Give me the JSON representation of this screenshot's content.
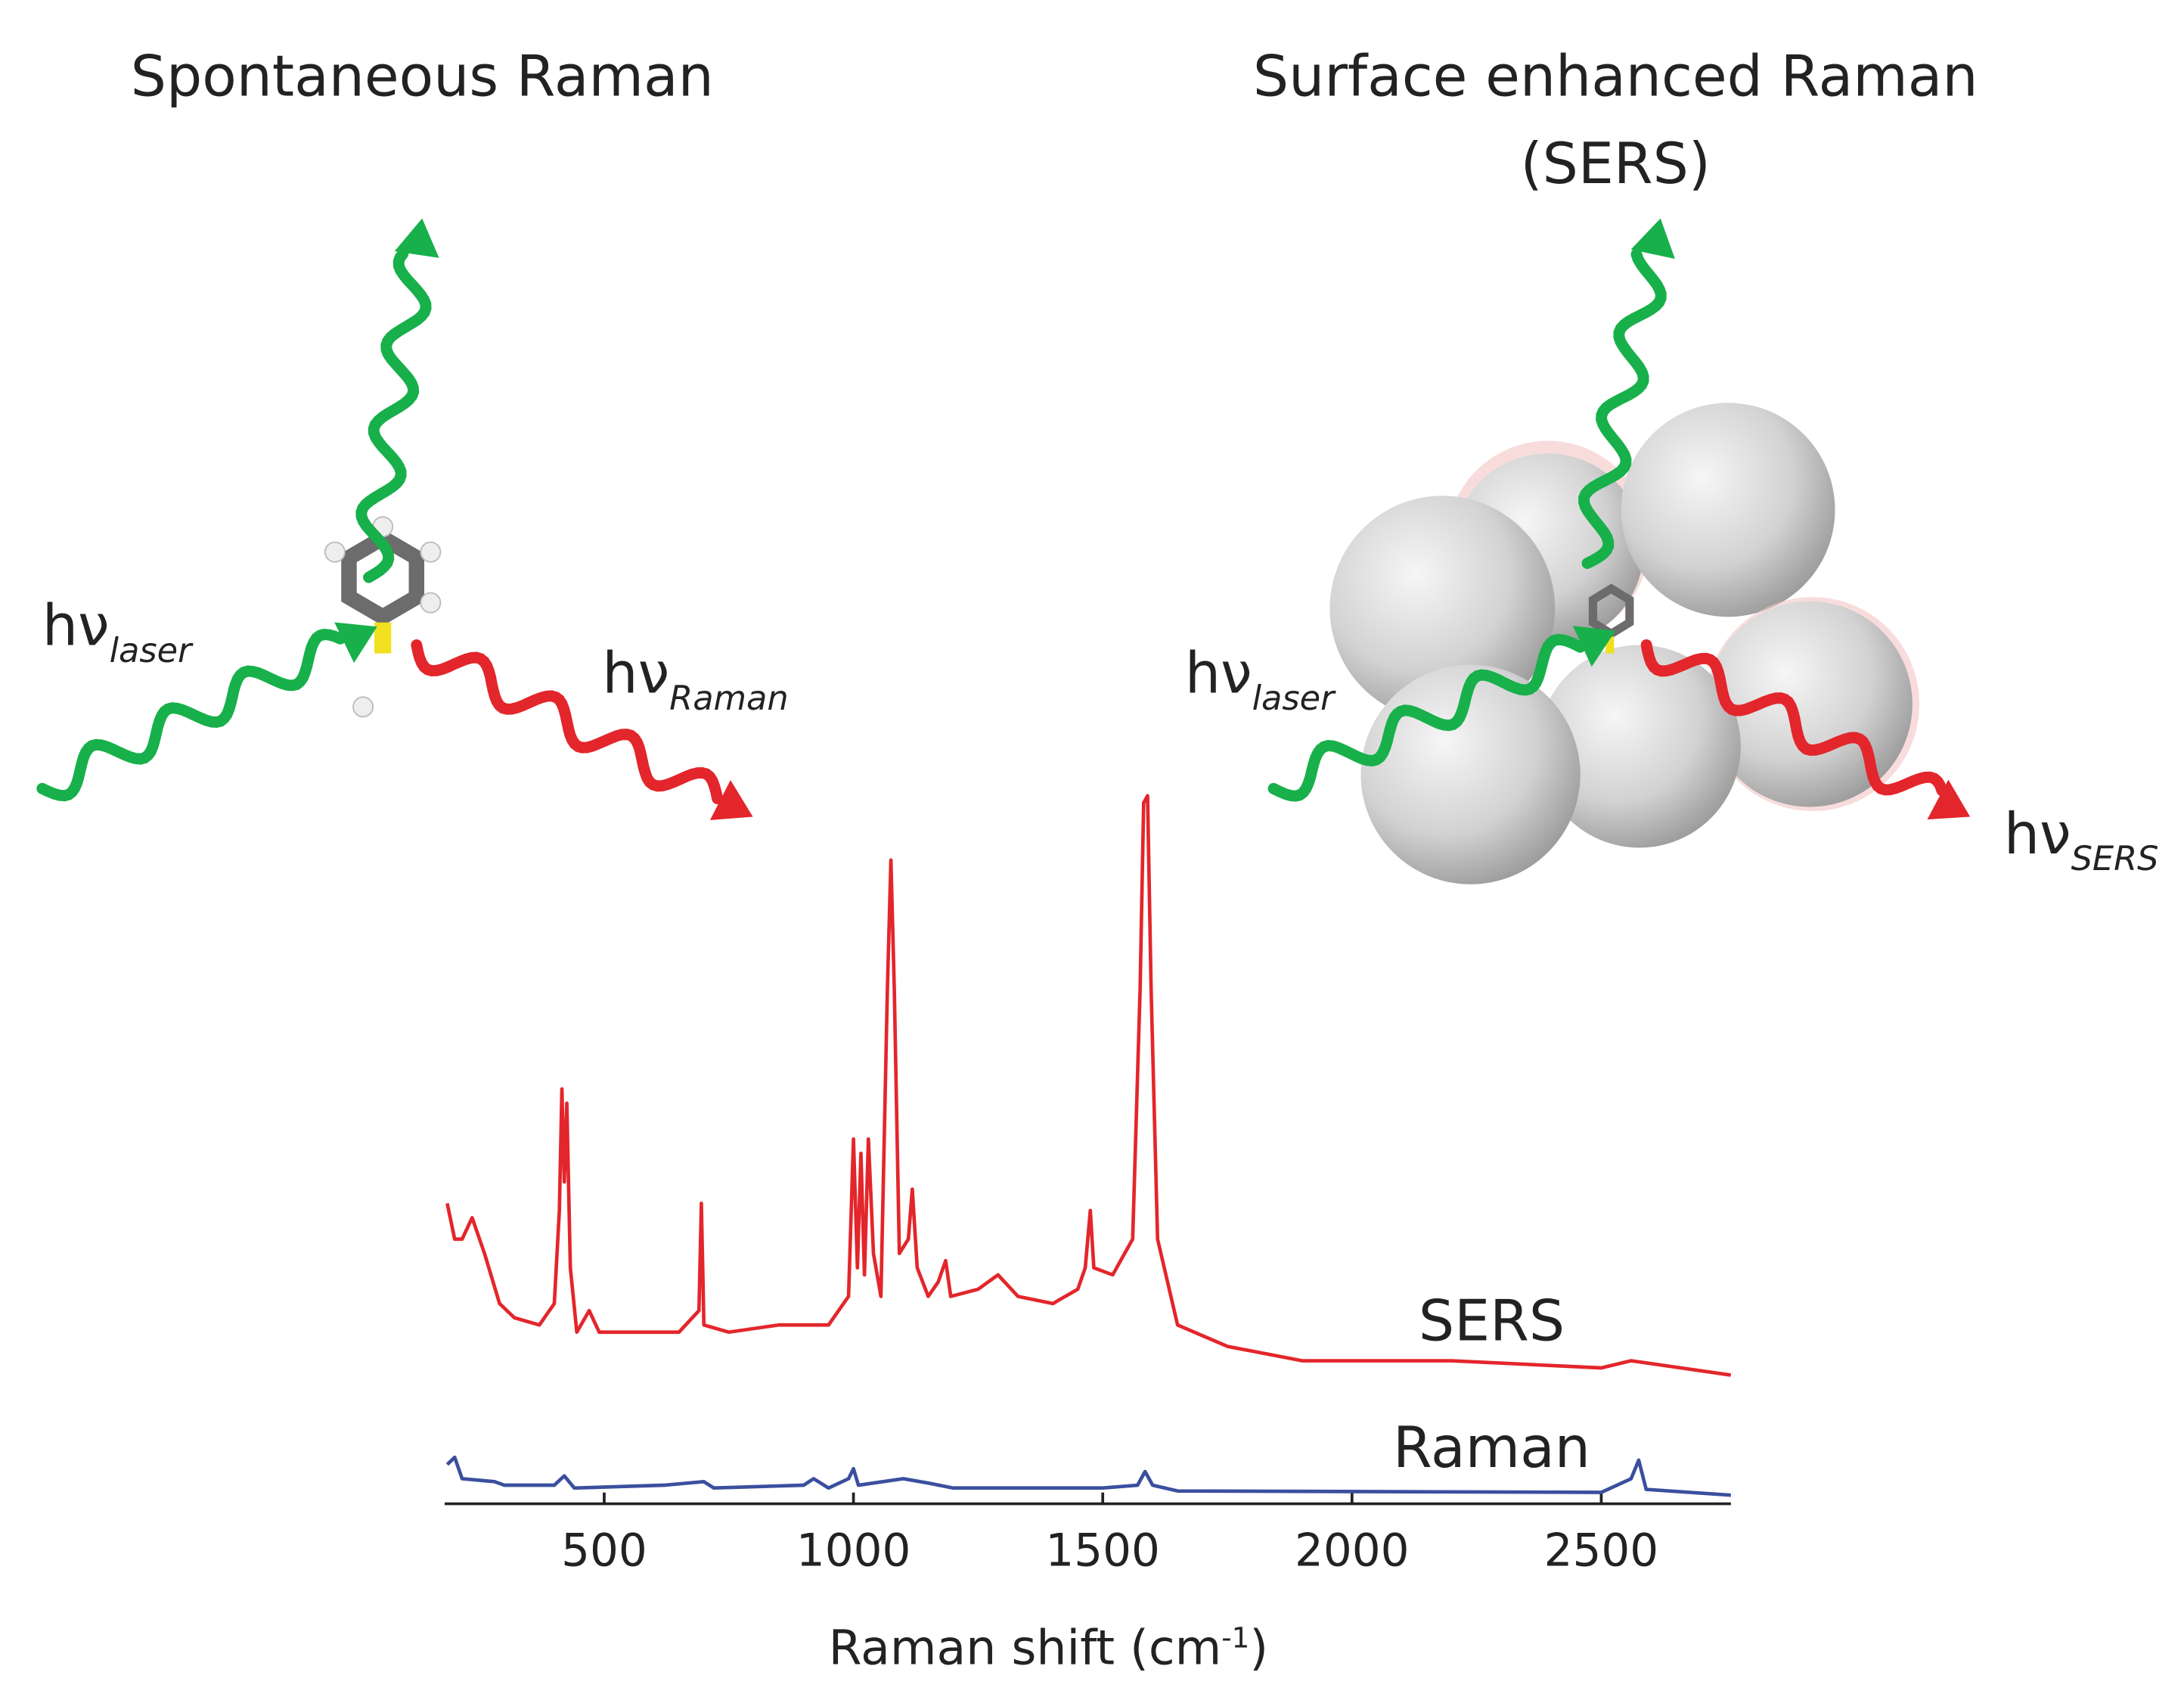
{
  "diagram": {
    "left_title": "Spontaneous Raman",
    "right_title": [
      "Surface enhanced Raman",
      "(SERS)"
    ],
    "left_laser": {
      "main": "hν",
      "sub": "laser"
    },
    "left_raman": {
      "main": "hν",
      "sub": "Raman"
    },
    "right_laser": {
      "main": "hν",
      "sub": "laser"
    },
    "right_sers": {
      "main": "hν",
      "sub": "SERS"
    }
  },
  "chart_data": {
    "type": "line",
    "xlabel": {
      "text": "Raman shift (cm",
      "sup": "-1",
      "end": ")"
    },
    "xlim": [
      180,
      2760
    ],
    "xticks": [
      500,
      1000,
      1500,
      2000,
      2500
    ],
    "ylim": [
      0,
      100
    ],
    "series": [
      {
        "name": "SERS",
        "color": "#e3262b",
        "x": [
          185,
          200,
          215,
          235,
          260,
          290,
          320,
          370,
          400,
          410,
          415,
          420,
          425,
          432,
          445,
          470,
          490,
          550,
          650,
          690,
          695,
          700,
          750,
          850,
          950,
          990,
          1000,
          1008,
          1015,
          1022,
          1030,
          1040,
          1055,
          1068,
          1075,
          1082,
          1092,
          1110,
          1118,
          1128,
          1150,
          1170,
          1185,
          1195,
          1250,
          1290,
          1330,
          1400,
          1450,
          1465,
          1475,
          1482,
          1520,
          1560,
          1575,
          1582,
          1590,
          1597,
          1610,
          1650,
          1750,
          1900,
          2200,
          2500,
          2560,
          2760
        ],
        "values": [
          42,
          37,
          37,
          40,
          35,
          28,
          26,
          25,
          28,
          41,
          58,
          45,
          56,
          33,
          24,
          27,
          24,
          24,
          24,
          27,
          42,
          25,
          24,
          25,
          25,
          29,
          51,
          33,
          49,
          32,
          51,
          35,
          29,
          72,
          90,
          72,
          35,
          37,
          44,
          33,
          29,
          31,
          34,
          29,
          30,
          32,
          29,
          28,
          30,
          33,
          41,
          33,
          32,
          37,
          72,
          98,
          99,
          72,
          37,
          25,
          22,
          20,
          20,
          19,
          20,
          18
        ]
      },
      {
        "name": "Raman",
        "color": "#3a4f9e",
        "x": [
          185,
          200,
          215,
          280,
          300,
          400,
          420,
          440,
          620,
          700,
          720,
          900,
          920,
          950,
          990,
          1000,
          1010,
          1100,
          1150,
          1200,
          1500,
          1570,
          1585,
          1600,
          1650,
          2500,
          2560,
          2575,
          2590,
          2760
        ],
        "values": [
          5.5,
          6.5,
          3.5,
          3.1,
          2.6,
          2.6,
          3.9,
          2.2,
          2.6,
          3.1,
          2.2,
          2.6,
          3.5,
          2.2,
          3.5,
          4.9,
          2.6,
          3.5,
          2.9,
          2.2,
          2.2,
          2.6,
          4.5,
          2.6,
          1.8,
          1.6,
          3.5,
          6.1,
          2.0,
          1.2
        ]
      }
    ]
  }
}
